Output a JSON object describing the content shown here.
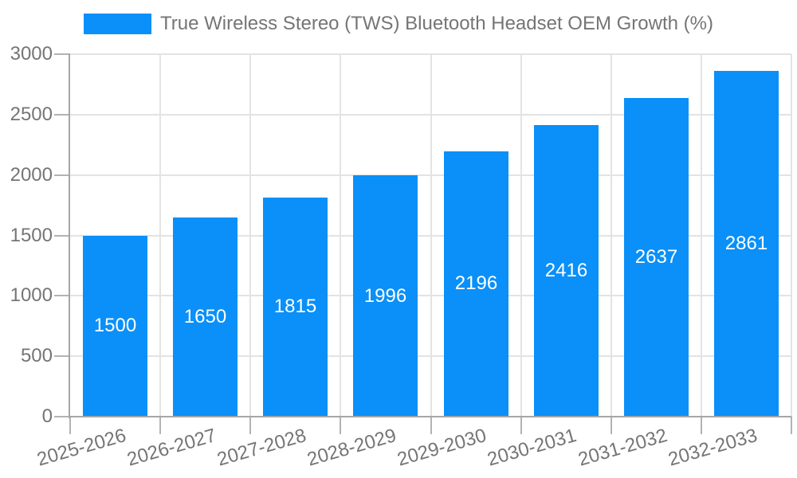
{
  "legend": {
    "label": "True Wireless Stereo (TWS) Bluetooth Headset OEM Growth (%)"
  },
  "colors": {
    "bar": "#0a90f8",
    "axis": "#a6a6a6",
    "tick": "#b3b3b3",
    "grid": "#e3e3e3",
    "text": "#757575",
    "value_label": "#ffffff",
    "background": "#ffffff"
  },
  "chart_data": {
    "type": "bar",
    "title": "True Wireless Stereo (TWS) Bluetooth Headset OEM Growth (%)",
    "categories": [
      "2025-2026",
      "2026-2027",
      "2027-2028",
      "2028-2029",
      "2029-2030",
      "2030-2031",
      "2031-2032",
      "2032-2033"
    ],
    "values": [
      1500,
      1650,
      1815,
      1996,
      2196,
      2416,
      2637,
      2861
    ],
    "xlabel": "",
    "ylabel": "",
    "ylim": [
      0,
      3000
    ],
    "yticks": [
      0,
      500,
      1000,
      1500,
      2000,
      2500,
      3000
    ],
    "grid": true,
    "legend_position": "top-center",
    "bar_color": "#0a90f8",
    "value_label_position": "inside-center",
    "value_label_color": "#ffffff",
    "x_tick_rotation_deg": -16
  }
}
